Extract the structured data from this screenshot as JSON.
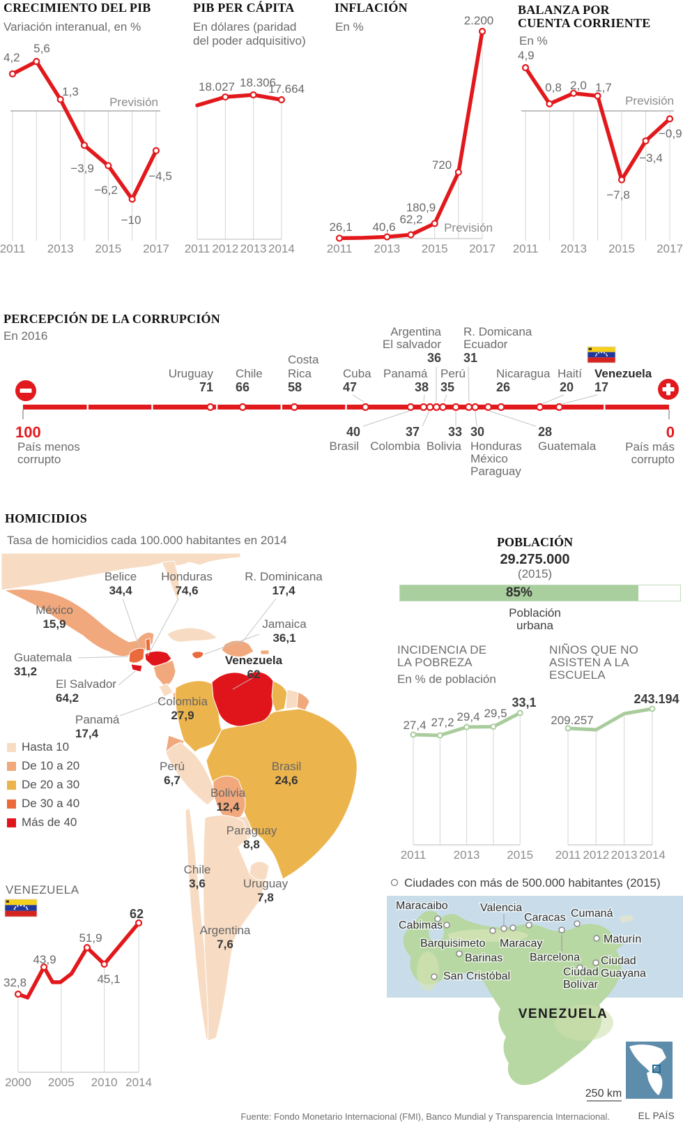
{
  "palette": {
    "red": "#e2191c",
    "green": "#a9cc9c",
    "green_bar": "#a9cf9e",
    "map": [
      "#f7dcc3",
      "#f0a87c",
      "#ecb44c",
      "#eb6a3b",
      "#e0151c"
    ],
    "sea": "#c8dde9",
    "land": "#b7d7a3",
    "inset_bg": "#5e8cab"
  },
  "chart_data": [
    {
      "id": "crecimiento",
      "type": "line",
      "title": "CRECIMIENTO DEL PIB",
      "subtitle": "Variación interanual, en %",
      "x": [
        2011,
        2012,
        2013,
        2014,
        2015,
        2016,
        2017
      ],
      "values": [
        4.2,
        5.6,
        1.3,
        -3.9,
        -6.2,
        -10,
        -4.5
      ],
      "point_labels": [
        "4,2",
        "5,6",
        "1,3",
        "−3,9",
        "−6,2",
        "−10",
        "−4,5"
      ],
      "xticks": [
        "2011",
        "2013",
        "2015",
        "2017"
      ],
      "annotation": "Previsión"
    },
    {
      "id": "pib_per_capita",
      "type": "line",
      "title": "PIB PER CÁPITA",
      "subtitle_lines": [
        "En dólares (paridad",
        "del poder adquisitivo)"
      ],
      "x": [
        2011,
        2012,
        2013,
        2014
      ],
      "values": [
        16930,
        18027,
        18306,
        17664
      ],
      "point_labels": [
        "",
        "18.027",
        "18.306",
        "17.664"
      ],
      "xticks": [
        "2011",
        "2012",
        "2013",
        "2014"
      ]
    },
    {
      "id": "inflacion",
      "type": "line",
      "title": "INFLACIÓN",
      "subtitle": "En %",
      "x": [
        2011,
        2012,
        2013,
        2014,
        2015,
        2016,
        2017
      ],
      "values": [
        26.1,
        30,
        40.6,
        62.2,
        180.9,
        720,
        2200
      ],
      "point_labels": [
        "26,1",
        "",
        "40,6",
        "62,2",
        "180,9",
        "720",
        "2.200"
      ],
      "xticks": [
        "2011",
        "2013",
        "2015",
        "2017"
      ],
      "annotation": "Previsión"
    },
    {
      "id": "balanza",
      "type": "line",
      "title_lines": [
        "BALANZA POR",
        "CUENTA CORRIENTE"
      ],
      "subtitle": "En %",
      "x": [
        2011,
        2012,
        2013,
        2014,
        2015,
        2016,
        2017
      ],
      "values": [
        4.9,
        0.8,
        2.0,
        1.7,
        -7.8,
        -3.4,
        -0.9
      ],
      "point_labels": [
        "4,9",
        "0,8",
        "2,0",
        "1,7",
        "−7,8",
        "−3,4",
        "−0,9"
      ],
      "xticks": [
        "2011",
        "2013",
        "2015",
        "2017"
      ],
      "annotation": "Previsión"
    },
    {
      "id": "corrupcion",
      "type": "scatter",
      "title": "PERCEPCIÓN DE LA CORRUPCIÓN",
      "subtitle": "En 2016",
      "axis": {
        "max": 100,
        "min": 0,
        "max_label": "100",
        "max_sub": [
          "País menos",
          "corrupto"
        ],
        "min_label": "0",
        "min_sub": [
          "País más",
          "corrupto"
        ]
      },
      "top_entries": [
        {
          "lines": [
            "Uruguay"
          ],
          "value": 71
        },
        {
          "lines": [
            "Chile"
          ],
          "value": 66
        },
        {
          "lines": [
            "Costa",
            "Rica"
          ],
          "value": 58
        },
        {
          "lines": [
            "Cuba"
          ],
          "value": 47
        },
        {
          "lines": [
            "Panamá"
          ],
          "value": 38
        },
        {
          "lines": [
            "Argentina",
            "El salvador"
          ],
          "value": 36
        },
        {
          "lines": [
            "Perú"
          ],
          "value": 35
        },
        {
          "lines": [
            "R. Domicana",
            "Ecuador"
          ],
          "value": 31
        },
        {
          "lines": [
            "Nicaragua"
          ],
          "value": 26
        },
        {
          "lines": [
            "Haití"
          ],
          "value": 20
        },
        {
          "lines": [
            "Venezuela"
          ],
          "value": 17,
          "bold": true,
          "flag": true
        }
      ],
      "bottom_entries": [
        {
          "lines": [
            "Brasil"
          ],
          "value": 40
        },
        {
          "lines": [
            "Colombia"
          ],
          "value": 37
        },
        {
          "lines": [
            "Bolivia"
          ],
          "value": 33
        },
        {
          "lines": [
            "Honduras",
            "México",
            "Paraguay"
          ],
          "value": 30
        },
        {
          "lines": [
            "Guatemala"
          ],
          "value": 28
        }
      ]
    },
    {
      "id": "homicidios",
      "type": "table",
      "title": "HOMICIDIOS",
      "subtitle": "Tasa de homicidios cada 100.000 habitantes en 2014",
      "legend": [
        "Hasta 10",
        "De 10 a 20",
        "De 20 a 30",
        "De 30 a 40",
        "Más de 40"
      ],
      "countries": [
        {
          "name": "Belice",
          "value": "34,4"
        },
        {
          "name": "Honduras",
          "value": "74,6"
        },
        {
          "name": "R. Dominicana",
          "value": "17,4"
        },
        {
          "name": "México",
          "value": "15,9"
        },
        {
          "name": "Jamaica",
          "value": "36,1"
        },
        {
          "name": "Guatemala",
          "value": "31,2"
        },
        {
          "name": "El Salvador",
          "value": "64,2"
        },
        {
          "name": "Venezuela",
          "value": "62",
          "bold": true
        },
        {
          "name": "Colombia",
          "value": "27,9"
        },
        {
          "name": "Panamá",
          "value": "17,4"
        },
        {
          "name": "Perú",
          "value": "6,7"
        },
        {
          "name": "Brasil",
          "value": "24,6"
        },
        {
          "name": "Bolivia",
          "value": "12,4"
        },
        {
          "name": "Paraguay",
          "value": "8,8"
        },
        {
          "name": "Chile",
          "value": "3,6"
        },
        {
          "name": "Uruguay",
          "value": "7,8"
        },
        {
          "name": "Argentina",
          "value": "7,6"
        }
      ]
    },
    {
      "id": "venezuela_homicidios",
      "type": "line",
      "title": "VENEZUELA",
      "x": [
        2000,
        2001.1,
        2003,
        2004,
        2004.9,
        2006.2,
        2008,
        2010,
        2014
      ],
      "values": [
        32.8,
        31.4,
        43.9,
        37.7,
        37.7,
        41.2,
        51.9,
        45.1,
        62
      ],
      "point_labels": [
        "32,8",
        "",
        "43,9",
        "",
        "",
        "",
        "51,9",
        "45,1",
        "62"
      ],
      "xticks": [
        "2000",
        "2005",
        "2010",
        "2014"
      ]
    },
    {
      "id": "poblacion_urbana",
      "type": "bar",
      "categories": [
        "Población urbana"
      ],
      "values": [
        85
      ],
      "label": "85%"
    },
    {
      "id": "pobreza",
      "type": "line",
      "title_lines": [
        "INCIDENCIA DE",
        "LA POBREZA"
      ],
      "subtitle": "En % de población",
      "x": [
        2011,
        2012,
        2013,
        2014,
        2015
      ],
      "values": [
        27.4,
        27.2,
        29.4,
        29.5,
        33.1
      ],
      "point_labels": [
        "27,4",
        "27,2",
        "29,4",
        "29,5",
        "33,1"
      ],
      "xticks": [
        "2011",
        "2013",
        "2015"
      ]
    },
    {
      "id": "escuela",
      "type": "line",
      "title_lines": [
        "NIÑOS QUE NO",
        "ASISTEN A LA ESCUELA"
      ],
      "x": [
        2011,
        2012,
        2013,
        2014
      ],
      "values": [
        209257,
        206800,
        234700,
        243194
      ],
      "point_labels": [
        "209.257",
        "",
        "",
        "243.194"
      ],
      "xticks": [
        "2011",
        "2012",
        "2013",
        "2014"
      ]
    }
  ],
  "poblacion": {
    "title": "POBLACIÓN",
    "value": "29.275.000",
    "year": "(2015)",
    "pct": "85%",
    "pct_value": 85,
    "bar_label": [
      "Población",
      "urbana"
    ]
  },
  "ciudades_note": "Ciudades con más de 500.000 habitantes (2015)",
  "venezuela_map": {
    "name": "VENEZUELA",
    "scale_label": "250 km",
    "cities": [
      {
        "name": "Maracaibo"
      },
      {
        "name": "Cabimas"
      },
      {
        "name": "Valencia"
      },
      {
        "name": "Caracas"
      },
      {
        "name": "Cumaná"
      },
      {
        "name": "Barquisimeto"
      },
      {
        "name": "Maracay"
      },
      {
        "name": "Barcelona"
      },
      {
        "name": "Maturín"
      },
      {
        "name": "Barinas"
      },
      {
        "name": "San Cristóbal"
      },
      {
        "name": "Ciudad Bolívar"
      },
      {
        "name": "Ciudad Guayana"
      }
    ]
  },
  "footer": {
    "source": "Fuente: Fondo Monetario Internacional (FMI), Banco Mundial y Transparencia Internacional.",
    "brand": "EL PAÍS"
  }
}
